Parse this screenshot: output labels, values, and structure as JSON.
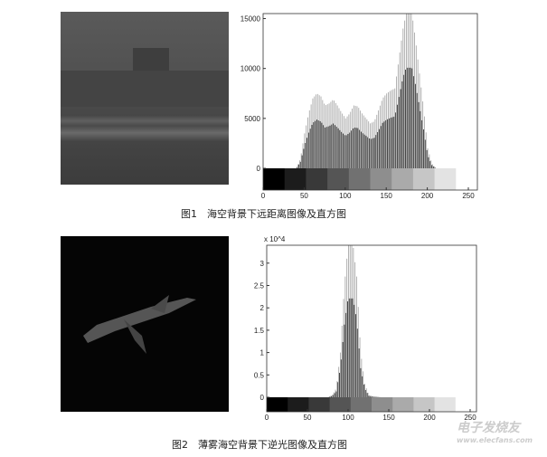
{
  "figures": [
    {
      "caption": "图1　海空背景下远距离图像及直方图",
      "image": "distant sea-sky target image (ship on horizon)"
    },
    {
      "caption": "图2　薄雾海空背景下逆光图像及直方图",
      "image": "backlit aircraft in haze"
    }
  ],
  "watermark": {
    "text": "电子发烧友",
    "url": "www.elecfans.com"
  },
  "chart_data": [
    {
      "type": "bar",
      "title": "",
      "xlabel": "",
      "ylabel": "",
      "xlim": [
        0,
        255
      ],
      "ylim": [
        -1500,
        15500
      ],
      "xticks": [
        "0",
        "50",
        "100",
        "150",
        "200",
        "250"
      ],
      "yticks": [
        "0",
        "5000",
        "10000",
        "15000"
      ],
      "x": [
        40,
        45,
        50,
        55,
        60,
        65,
        70,
        75,
        80,
        85,
        90,
        95,
        100,
        105,
        110,
        115,
        120,
        125,
        130,
        135,
        140,
        145,
        150,
        155,
        160,
        165,
        170,
        175,
        180,
        185,
        190,
        195,
        200,
        205,
        210
      ],
      "values": [
        0,
        1000,
        3500,
        5500,
        7000,
        7500,
        7200,
        6300,
        6500,
        6900,
        6300,
        5600,
        5000,
        5500,
        6300,
        6200,
        5500,
        5000,
        4500,
        4700,
        5800,
        7000,
        7500,
        7800,
        8000,
        11000,
        14000,
        16000,
        16000,
        13000,
        9500,
        6000,
        2000,
        500,
        0
      ],
      "colorbar": "grayscale"
    },
    {
      "type": "bar",
      "title": "",
      "xlabel": "",
      "ylabel": "",
      "exponent": "x 10^4",
      "xlim": [
        0,
        255
      ],
      "ylim": [
        -0.3,
        3.4
      ],
      "xticks": [
        "0",
        "50",
        "100",
        "150",
        "200",
        "250"
      ],
      "yticks": [
        "0",
        "0.5",
        "1",
        "1.5",
        "2",
        "2.5",
        "3"
      ],
      "x": [
        75,
        80,
        85,
        90,
        95,
        100,
        105,
        110,
        115,
        120,
        125,
        130,
        140
      ],
      "values": [
        0,
        0.05,
        0.2,
        1.0,
        2.5,
        3.5,
        3.5,
        2.7,
        1.0,
        0.3,
        0.05,
        0.02,
        0
      ],
      "colorbar": "grayscale"
    }
  ]
}
